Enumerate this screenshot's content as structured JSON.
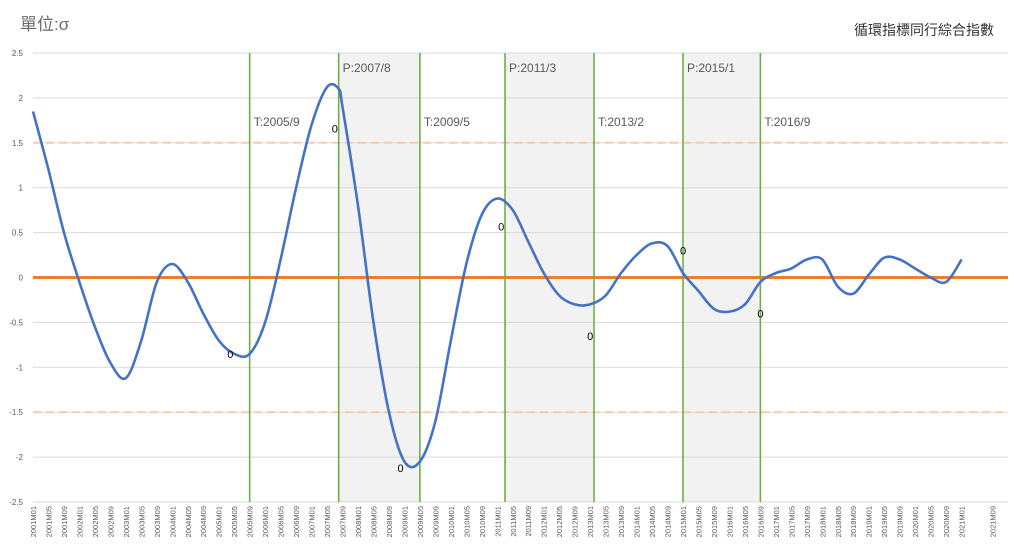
{
  "chart_data": {
    "type": "line",
    "title": "循環指標同行綜合指數",
    "unit_label": "單位:σ",
    "ylim": [
      -2.5,
      2.5
    ],
    "y_ticks": [
      "2.5",
      "2",
      "1.5",
      "1",
      "0.5",
      "0",
      "-0.5",
      "-1",
      "-1.5",
      "-2",
      "-2.5"
    ],
    "y_tick_values": [
      2.5,
      2,
      1.5,
      1,
      0.5,
      0,
      -0.5,
      -1,
      -1.5,
      -2,
      -2.5
    ],
    "x_range": [
      "2001M01",
      "2021M12"
    ],
    "x_ticks": [
      "2001M01",
      "2001M05",
      "2001M09",
      "2002M01",
      "2002M05",
      "2002M09",
      "2003M01",
      "2003M05",
      "2003M09",
      "2004M01",
      "2004M05",
      "2004M09",
      "2005M01",
      "2005M05",
      "2005M09",
      "2006M01",
      "2006M05",
      "2006M09",
      "2007M01",
      "2007M05",
      "2007M09",
      "2008M01",
      "2008M05",
      "2008M09",
      "2009M01",
      "2009M05",
      "2009M09",
      "2010M01",
      "2010M05",
      "2010M09",
      "2011M01",
      "2011M05",
      "2011M09",
      "2012M01",
      "2012M05",
      "2012M09",
      "2013M01",
      "2013M05",
      "2013M09",
      "2014M01",
      "2014M05",
      "2014M09",
      "2015M01",
      "2015M05",
      "2015M09",
      "2016M01",
      "2016M05",
      "2016M09",
      "2017M01",
      "2017M05",
      "2017M09",
      "2018M01",
      "2018M05",
      "2018M09",
      "2019M01",
      "2019M05",
      "2019M09",
      "2020M01",
      "2020M05",
      "2020M09",
      "2021M01",
      "2021M09"
    ],
    "reference_lines": [
      {
        "y": 0,
        "color": "#ed7d31",
        "style": "solid"
      },
      {
        "y": 1.5,
        "color": "#f8cbad",
        "style": "dashed"
      },
      {
        "y": -1.5,
        "color": "#f8cbad",
        "style": "dashed"
      }
    ],
    "turning_points": [
      {
        "label": "T:2005/9",
        "date": "2005M09",
        "type": "trough"
      },
      {
        "label": "P:2007/8",
        "date": "2007M08",
        "type": "peak"
      },
      {
        "label": "T:2009/5",
        "date": "2009M05",
        "type": "trough"
      },
      {
        "label": "P:2011/3",
        "date": "2011M03",
        "type": "peak"
      },
      {
        "label": "T:2013/2",
        "date": "2013M02",
        "type": "trough"
      },
      {
        "label": "P:2015/1",
        "date": "2015M01",
        "type": "peak"
      },
      {
        "label": "T:2016/9",
        "date": "2016M09",
        "type": "trough"
      }
    ],
    "recession_shading": [
      {
        "from": "2007M08",
        "to": "2009M05"
      },
      {
        "from": "2011M03",
        "to": "2013M02"
      },
      {
        "from": "2015M01",
        "to": "2016M09"
      }
    ],
    "annotations": [
      {
        "text": "0",
        "date": "2005M04",
        "y": -0.85
      },
      {
        "text": "0",
        "date": "2007M07",
        "y": 1.66
      },
      {
        "text": "0",
        "date": "2008M12",
        "y": -2.12
      },
      {
        "text": "0",
        "date": "2011M02",
        "y": 0.57
      },
      {
        "text": "0",
        "date": "2013M01",
        "y": -0.65
      },
      {
        "text": "0",
        "date": "2015M01",
        "y": 0.3
      },
      {
        "text": "0",
        "date": "2016M09",
        "y": -0.4
      }
    ],
    "series": [
      {
        "color": "#4472c4",
        "x": [
          "2001M01",
          "2001M05",
          "2001M09",
          "2002M01",
          "2002M05",
          "2002M09",
          "2003M01",
          "2003M05",
          "2003M09",
          "2004M01",
          "2004M05",
          "2004M09",
          "2005M01",
          "2005M05",
          "2005M09",
          "2006M01",
          "2006M05",
          "2006M09",
          "2007M01",
          "2007M05",
          "2007M08",
          "2007M09",
          "2008M01",
          "2008M05",
          "2008M09",
          "2009M01",
          "2009M05",
          "2009M09",
          "2010M01",
          "2010M05",
          "2010M09",
          "2011M01",
          "2011M05",
          "2011M09",
          "2012M01",
          "2012M05",
          "2012M09",
          "2013M01",
          "2013M05",
          "2013M09",
          "2014M01",
          "2014M05",
          "2014M09",
          "2015M01",
          "2015M05",
          "2015M09",
          "2016M01",
          "2016M05",
          "2016M09",
          "2017M01",
          "2017M05",
          "2017M09",
          "2018M01",
          "2018M05",
          "2018M09",
          "2019M01",
          "2019M05",
          "2019M09",
          "2020M01",
          "2020M05",
          "2020M09",
          "2021M01"
        ],
        "y": [
          1.85,
          1.2,
          0.5,
          -0.05,
          -0.55,
          -0.95,
          -1.12,
          -0.7,
          -0.05,
          0.15,
          -0.05,
          -0.4,
          -0.7,
          -0.85,
          -0.85,
          -0.5,
          0.2,
          1.0,
          1.7,
          2.12,
          2.1,
          1.9,
          0.8,
          -0.5,
          -1.5,
          -2.05,
          -2.05,
          -1.6,
          -0.7,
          0.15,
          0.7,
          0.88,
          0.75,
          0.4,
          0.05,
          -0.2,
          -0.3,
          -0.3,
          -0.2,
          0.05,
          0.25,
          0.38,
          0.35,
          0.05,
          -0.15,
          -0.35,
          -0.38,
          -0.3,
          -0.05,
          0.05,
          0.1,
          0.2,
          0.2,
          -0.1,
          -0.18,
          0.03,
          0.22,
          0.2,
          0.1,
          0.0,
          -0.05,
          0.2
        ]
      }
    ]
  }
}
